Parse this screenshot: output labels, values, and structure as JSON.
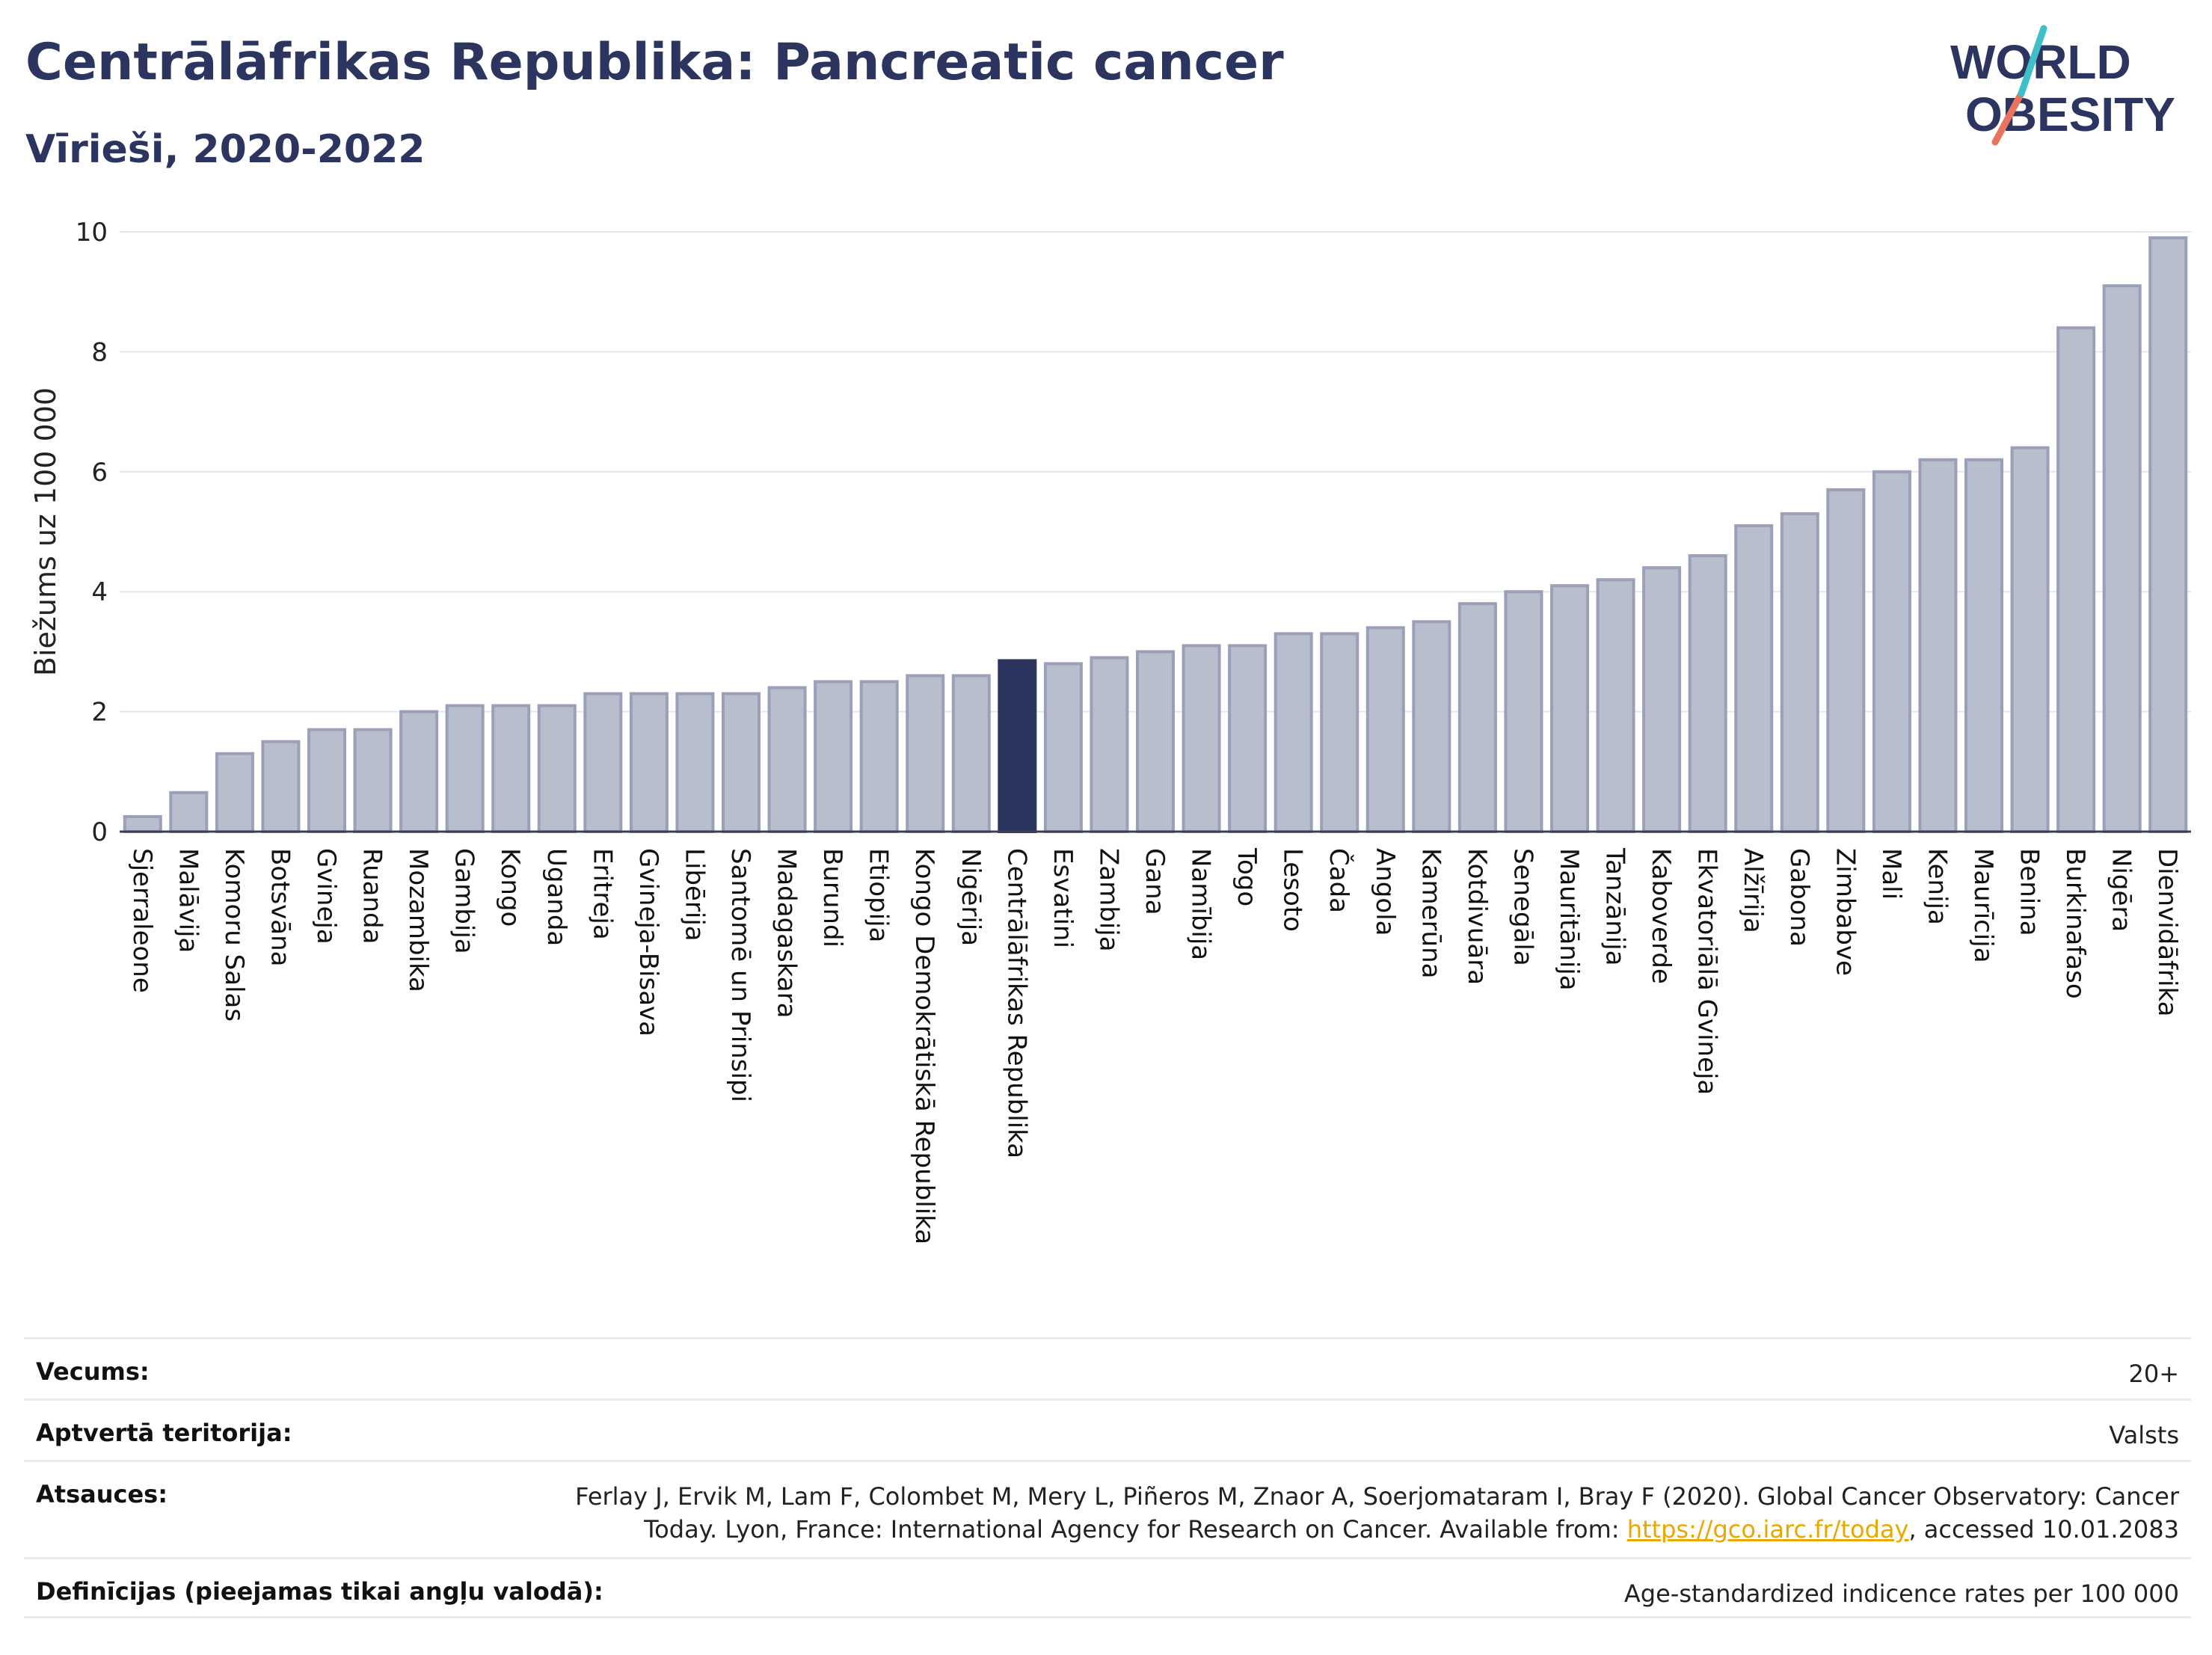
{
  "header": {
    "title": "Centrālāfrikas Republika: Pancreatic cancer",
    "subtitle": "Vīrieši, 2020-2022"
  },
  "logo": {
    "line1": "WORLD",
    "line2": "OBESITY"
  },
  "colors": {
    "bar": "#b9becd",
    "bar_border": "#9aa0b9",
    "highlight": "#2b3560",
    "grid": "#e3e7ec"
  },
  "chart_data": {
    "type": "bar",
    "ylabel": "Biežums uz 100 000",
    "ylim": [
      0,
      10
    ],
    "yticks": [
      0,
      2,
      4,
      6,
      8,
      10
    ],
    "highlight": "Centrālāfrikas Republika",
    "categories": [
      "Sjerraleone",
      "Malāvija",
      "Komoru Salas",
      "Botsvāna",
      "Gvineja",
      "Ruanda",
      "Mozambika",
      "Gambija",
      "Kongo",
      "Uganda",
      "Eritreja",
      "Gvineja-Bisava",
      "Libērija",
      "Santomē un Prinsipi",
      "Madagaskara",
      "Burundi",
      "Etiopija",
      "Kongo Demokrātiskā Republika",
      "Nigērija",
      "Centrālāfrikas Republika",
      "Esvatini",
      "Zambija",
      "Gana",
      "Namībija",
      "Togo",
      "Lesoto",
      "Čada",
      "Angola",
      "Kamerūna",
      "Kotdivuāra",
      "Senegāla",
      "Mauritānija",
      "Tanzānija",
      "Kaboverde",
      "Ekvatoriālā Gvineja",
      "Alžīrija",
      "Gabona",
      "Zimbabve",
      "Mali",
      "Kenija",
      "Maurīcija",
      "Benina",
      "Burkinafaso",
      "Nigēra",
      "Dienvidāfrika"
    ],
    "values": [
      0.25,
      0.65,
      1.3,
      1.5,
      1.7,
      1.7,
      2.0,
      2.1,
      2.1,
      2.1,
      2.3,
      2.3,
      2.3,
      2.3,
      2.4,
      2.5,
      2.5,
      2.6,
      2.6,
      2.85,
      2.8,
      2.9,
      3.0,
      3.1,
      3.1,
      3.3,
      3.3,
      3.4,
      3.5,
      3.8,
      4.0,
      4.1,
      4.2,
      4.4,
      4.6,
      5.1,
      5.3,
      5.7,
      6.0,
      6.2,
      6.2,
      6.4,
      8.4,
      9.1,
      9.9
    ]
  },
  "meta": {
    "age_label": "Vecums:",
    "age_value": "20+",
    "coverage_label": "Aptvertā teritorija:",
    "coverage_value": "Valsts",
    "refs_label": "Atsauces:",
    "refs_line1": "Ferlay J, Ervik M, Lam F, Colombet M, Mery L, Piñeros M, Znaor A, Soerjomataram I, Bray F (2020). Global Cancer Observatory: Cancer",
    "refs_line2_prefix": "Today. Lyon, France: International Agency for Research on Cancer. Available from: ",
    "refs_link": "https://gco.iarc.fr/today",
    "refs_line2_suffix": ", accessed 10.01.2083",
    "def_label": "Definīcijas (pieejamas tikai angļu valodā):",
    "def_value": "Age-standardized indicence rates per 100 000"
  }
}
